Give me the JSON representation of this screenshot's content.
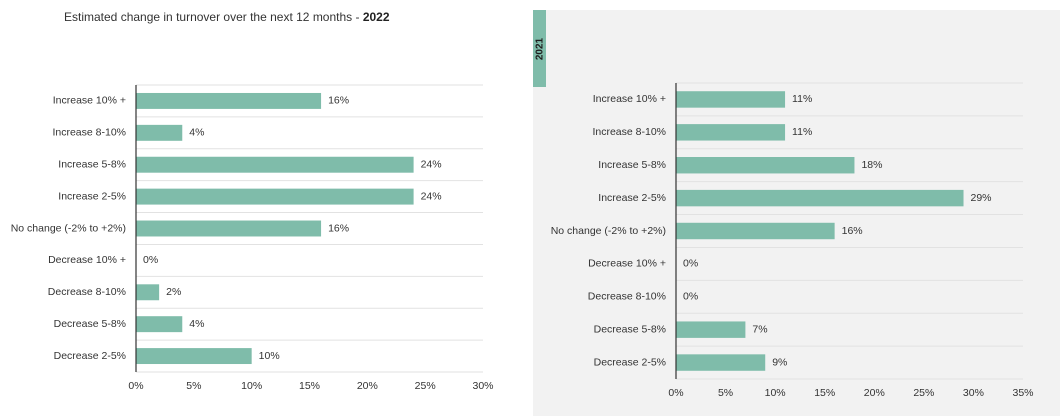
{
  "title": {
    "text": "Estimated change in turnover over the next 12 months - ",
    "year": "2022"
  },
  "year_tab": "2021",
  "colors": {
    "bar": "#7fbcaa",
    "grid": "#e2e2e2",
    "axis": "#333333",
    "panel": "#f2f2f2"
  },
  "chart_data": [
    {
      "type": "bar",
      "orientation": "horizontal",
      "title": "Estimated change in turnover over the next 12 months - 2022",
      "categories": [
        "Increase 10% +",
        "Increase 8-10%",
        "Increase 5-8%",
        "Increase 2-5%",
        "No change (-2% to +2%)",
        "Decrease 10% +",
        "Decrease 8-10%",
        "Decrease 5-8%",
        "Decrease 2-5%"
      ],
      "values": [
        16,
        4,
        24,
        24,
        16,
        0,
        2,
        4,
        10
      ],
      "value_labels": [
        "16%",
        "4%",
        "24%",
        "24%",
        "16%",
        "0%",
        "2%",
        "4%",
        "10%"
      ],
      "ticks": [
        0,
        5,
        10,
        15,
        20,
        25,
        30
      ],
      "tick_labels": [
        "0%",
        "5%",
        "10%",
        "15%",
        "20%",
        "25%",
        "30%"
      ],
      "xlim": [
        0,
        30
      ],
      "xlabel": "",
      "ylabel": ""
    },
    {
      "type": "bar",
      "orientation": "horizontal",
      "title": "2021",
      "categories": [
        "Increase 10% +",
        "Increase 8-10%",
        "Increase 5-8%",
        "Increase 2-5%",
        "No change (-2% to +2%)",
        "Decrease 10% +",
        "Decrease 8-10%",
        "Decrease 5-8%",
        "Decrease 2-5%"
      ],
      "values": [
        11,
        11,
        18,
        29,
        16,
        0,
        0,
        7,
        9
      ],
      "value_labels": [
        "11%",
        "11%",
        "18%",
        "29%",
        "16%",
        "0%",
        "0%",
        "7%",
        "9%"
      ],
      "ticks": [
        0,
        5,
        10,
        15,
        20,
        25,
        30,
        35
      ],
      "tick_labels": [
        "0%",
        "5%",
        "10%",
        "15%",
        "20%",
        "25%",
        "30%",
        "35%"
      ],
      "xlim": [
        0,
        35
      ],
      "xlabel": "",
      "ylabel": ""
    }
  ]
}
